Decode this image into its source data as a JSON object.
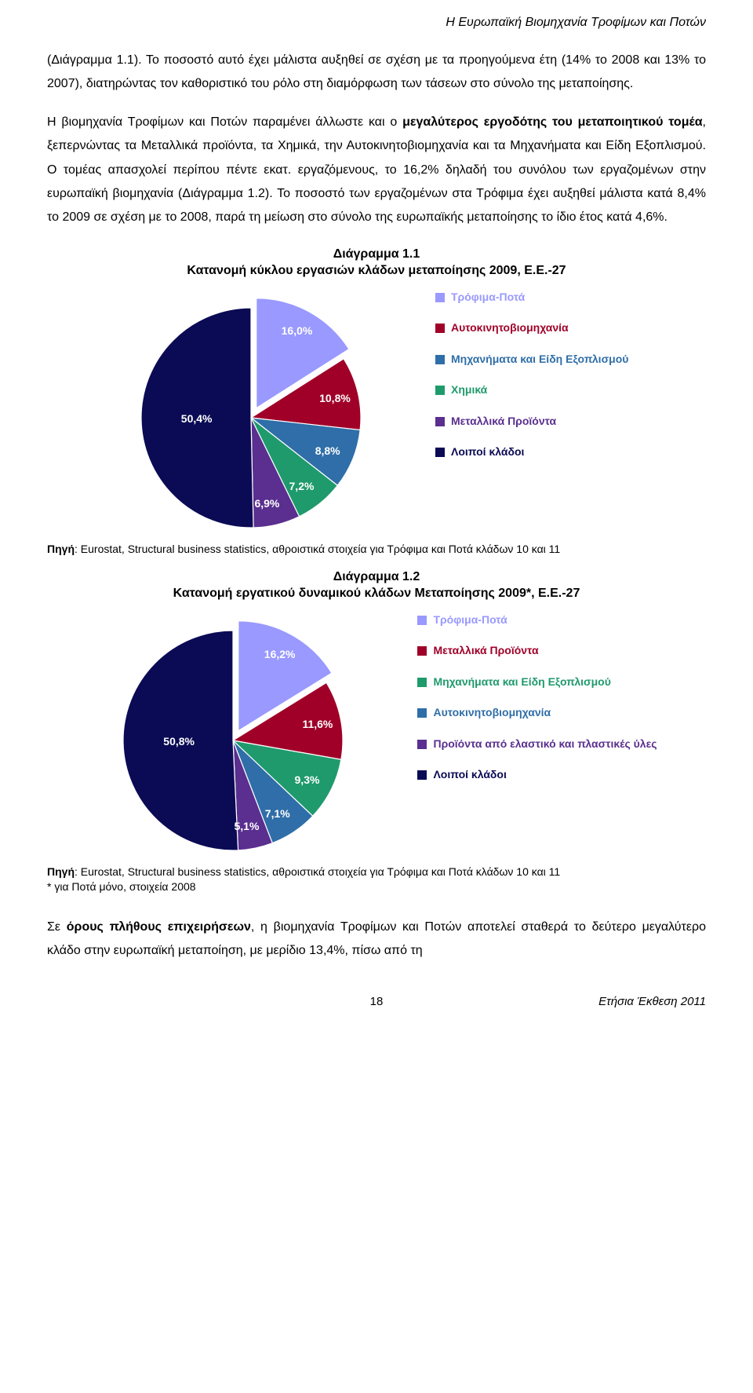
{
  "header": "Η Ευρωπαϊκή Βιομηχανία Τροφίμων και Ποτών",
  "para1": "(Διάγραμμα 1.1). Το ποσοστό αυτό έχει μάλιστα αυξηθεί σε σχέση με τα προηγούμενα έτη (14% το 2008 και 13% το 2007), διατηρώντας τον καθοριστικό του ρόλο στη διαμόρφωση των τάσεων στο σύνολο της μεταποίησης.",
  "para2_a": "Η βιομηχανία Τροφίμων και Ποτών παραμένει άλλωστε και ο ",
  "para2_b": "μεγαλύτερος εργοδότης του μεταποιητικού τομέα",
  "para2_c": ", ξεπερνώντας τα Μεταλλικά προϊόντα, τα Χημικά, την Αυτοκινητοβιομηχανία και τα Μηχανήματα και Είδη Εξοπλισμού. Ο τομέας απασχολεί περίπου πέντε εκατ. εργαζόμενους, το 16,2% δηλαδή του συνόλου των εργαζομένων στην ευρωπαϊκή βιομηχανία (Διάγραμμα 1.2). Το ποσοστό των εργαζομένων στα Τρόφιμα έχει αυξηθεί μάλιστα κατά 8,4% το 2009 σε σχέση με το 2008, παρά τη μείωση στο σύνολο της ευρωπαϊκής μεταποίησης το ίδιο έτος κατά 4,6%.",
  "chart1": {
    "title_a": "Διάγραμμα 1.1",
    "title_b": "Κατανομή κύκλου εργασιών κλάδων μεταποίησης 2009, Ε.Ε.-27",
    "slices": [
      {
        "label": "Τρόφιμα-Ποτά",
        "value": 16.0,
        "color": "#9999ff",
        "pct": "16,0%"
      },
      {
        "label": "Αυτοκινητοβιομηχανία",
        "value": 10.8,
        "color": "#a00028",
        "pct": "10,8%"
      },
      {
        "label": "Μηχανήματα και Είδη Εξοπλισμού",
        "value": 8.8,
        "color": "#2f6ea8",
        "pct": "8,8%"
      },
      {
        "label": "Χημικά",
        "value": 7.2,
        "color": "#1f9a6c",
        "pct": "7,2%"
      },
      {
        "label": "Μεταλλικά Προϊόντα",
        "value": 6.9,
        "color": "#5a2f8f",
        "pct": "6,9%"
      },
      {
        "label": "Λοιποί κλάδοι",
        "value": 50.4,
        "color": "#0a0a55",
        "pct": "50,4%"
      }
    ],
    "source_prefix": "Πηγή",
    "source_text": ": Eurostat, Structural business statistics, αθροιστικά στοιχεία για Τρόφιμα και Ποτά κλάδων 10 και 11"
  },
  "chart2": {
    "title_a": "Διάγραμμα 1.2",
    "title_b": "Κατανομή εργατικού δυναμικού κλάδων Μεταποίησης 2009*, Ε.Ε.-27",
    "slices": [
      {
        "label": "Τρόφιμα-Ποτά",
        "value": 16.2,
        "color": "#9999ff",
        "pct": "16,2%"
      },
      {
        "label": "Μεταλλικά Προϊόντα",
        "value": 11.6,
        "color": "#a00028",
        "pct": "11,6%"
      },
      {
        "label": "Μηχανήματα και Είδη Εξοπλισμού",
        "value": 9.3,
        "color": "#1f9a6c",
        "pct": "9,3%"
      },
      {
        "label": "Αυτοκινητοβιομηχανία",
        "value": 7.1,
        "color": "#2f6ea8",
        "pct": "7,1%"
      },
      {
        "label": "Προϊόντα από ελαστικό και πλαστικές ύλες",
        "value": 5.1,
        "color": "#5a2f8f",
        "pct": "5,1%"
      },
      {
        "label": "Λοιποί κλάδοι",
        "value": 50.8,
        "color": "#0a0a55",
        "pct": "50,8%"
      }
    ],
    "source_prefix": "Πηγή",
    "source_text": ": Eurostat, Structural business statistics, αθροιστικά στοιχεία για Τρόφιμα και Ποτά κλάδων 10 και 11",
    "source_note": "* για Ποτά μόνο, στοιχεία 2008"
  },
  "para3_a": "Σε ",
  "para3_b": "όρους πλήθους επιχειρήσεων",
  "para3_c": ", η βιομηχανία Τροφίμων και Ποτών αποτελεί σταθερά το δεύτερο μεγαλύτερο κλάδο στην ευρωπαϊκή μεταποίηση, με μερίδιο 13,4%, πίσω από τη",
  "footer": {
    "page": "18",
    "right": "Ετήσια Έκθεση 2011"
  }
}
